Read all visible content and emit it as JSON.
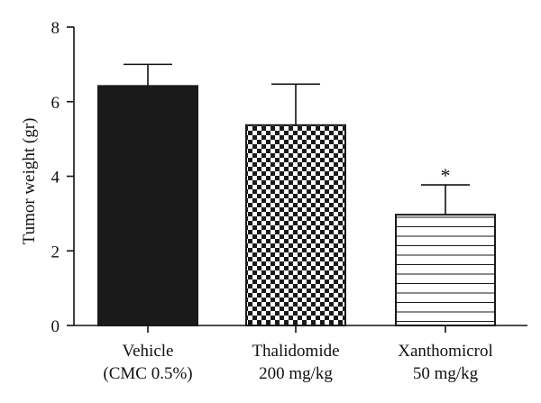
{
  "chart_data": {
    "type": "bar",
    "categories": [
      [
        "Vehicle",
        "(CMC 0.5%)"
      ],
      [
        "Thalidomide",
        "200 mg/kg"
      ],
      [
        "Xanthomicrol",
        "50 mg/kg"
      ]
    ],
    "values": [
      6.42,
      5.37,
      2.97
    ],
    "errors": [
      0.58,
      1.1,
      0.8
    ],
    "patterns": [
      "solid",
      "checker",
      "hlines"
    ],
    "annotations": [
      "",
      "",
      "*"
    ],
    "title": "",
    "xlabel": "",
    "ylabel": "Tumor weight (gr)",
    "ylim": [
      0,
      8
    ],
    "yticks": [
      0,
      2,
      4,
      6,
      8
    ],
    "grid": false,
    "colors": {
      "bar": "#1a1a1a",
      "axis": "#111111",
      "fill_light": "#ffffff"
    }
  }
}
